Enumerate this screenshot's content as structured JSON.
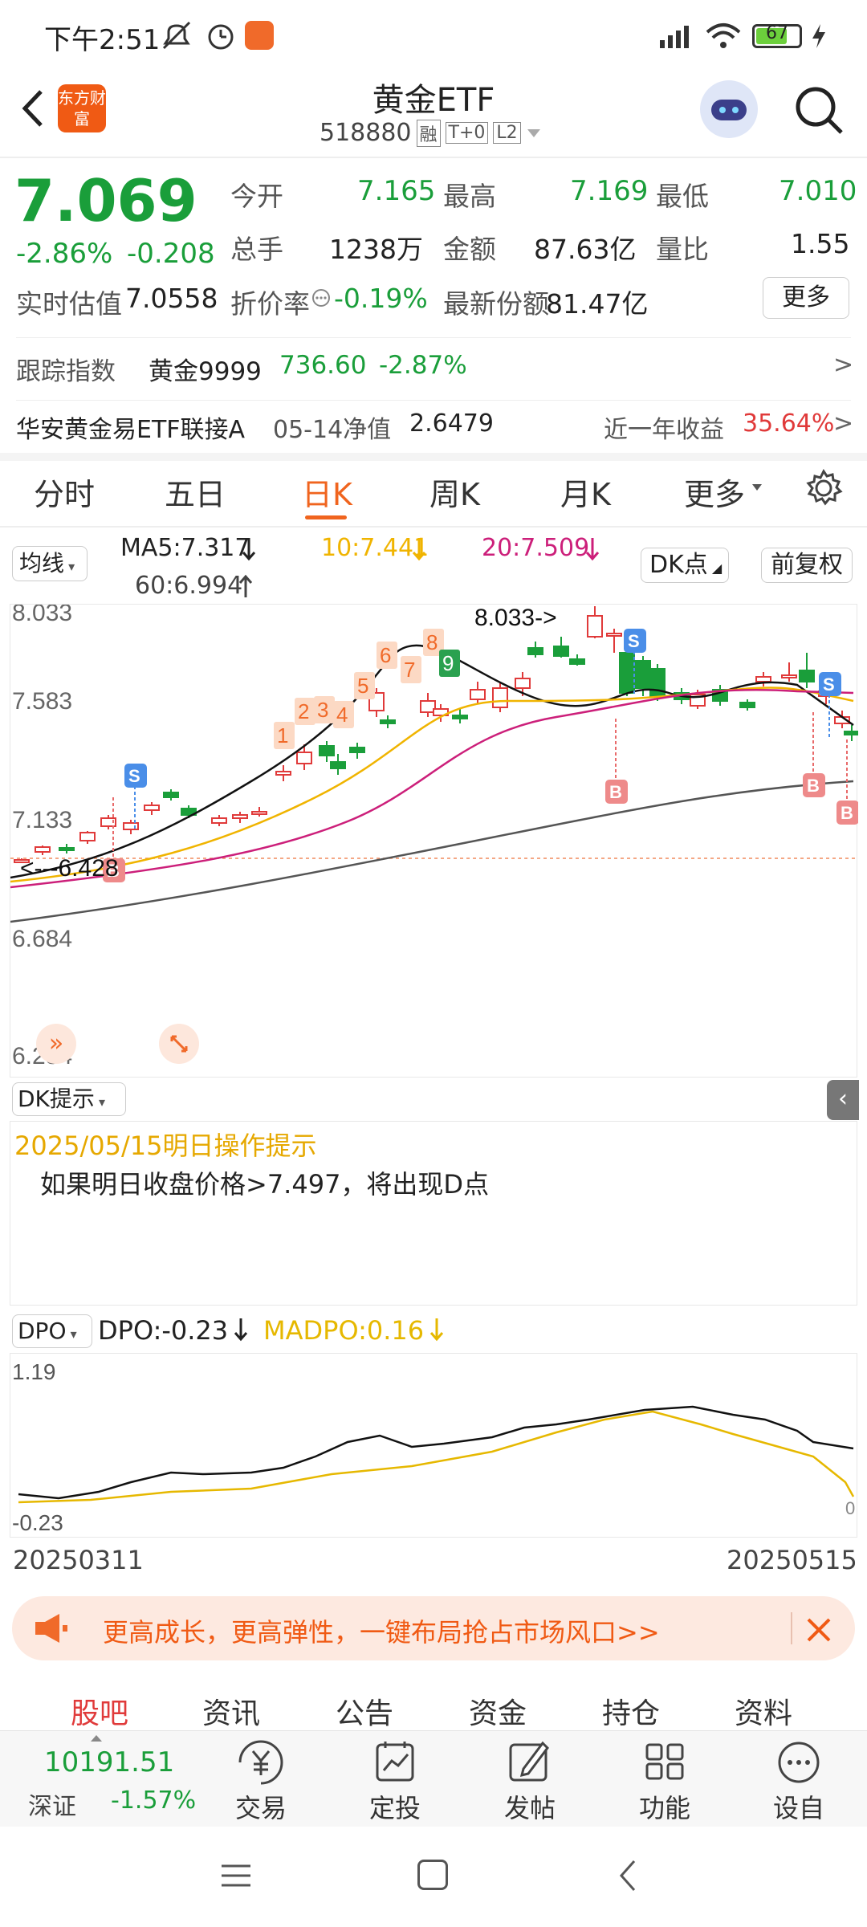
{
  "status_bar": {
    "time": "下午2:51",
    "battery": "67"
  },
  "header": {
    "title": "黄金ETF",
    "code": "518880",
    "badge_rong": "融",
    "badge_t0": "T+0",
    "badge_l2": "L2",
    "logo_text": "东方财富"
  },
  "quote": {
    "price": "7.069",
    "change_pct": "-2.86%",
    "change": "-0.208",
    "open_label": "今开",
    "open": "7.165",
    "high_label": "最高",
    "high": "7.169",
    "low_label": "最低",
    "low": "7.010",
    "volume_label": "总手",
    "volume": "1238万",
    "amount_label": "金额",
    "amount": "87.63亿",
    "ratio_label": "量比",
    "ratio": "1.55",
    "iopv_label": "实时估值",
    "iopv": "7.0558",
    "discount_label": "折价率",
    "discount": "-0.19%",
    "shares_label": "最新份额",
    "shares": "81.47亿",
    "more_label": "更多"
  },
  "tracking": {
    "label": "跟踪指数",
    "index_name": "黄金9999",
    "index_price": "736.60",
    "index_change": "-2.87%",
    "chevron": ">"
  },
  "linked_fund": {
    "name": "华安黄金易ETF联接A",
    "nav_label": "05-14净值",
    "nav": "2.6479",
    "ret_label": "近一年收益",
    "ret": "35.64%",
    "chevron": ">"
  },
  "chart_tabs": [
    "分时",
    "五日",
    "日K",
    "周K",
    "月K",
    "更多"
  ],
  "ma_bar": {
    "selector": "均线",
    "ma5": "MA5:7.317",
    "ma10": "10:7.441",
    "ma20": "20:7.509",
    "ma60": "60:6.994",
    "dk": "DK点",
    "fq": "前复权"
  },
  "chart_data": [
    {
      "type": "candlestick",
      "y_ticks": [
        "8.033",
        "7.583",
        "7.133",
        "6.684",
        "6.234"
      ],
      "ylim": [
        6.234,
        8.033
      ],
      "annotations": {
        "max_label": "8.033->",
        "min_label": "<---6.428",
        "seq": [
          "1",
          "2",
          "3",
          "4",
          "5",
          "6",
          "7",
          "8",
          "9"
        ],
        "buy": "B",
        "sell": "S"
      }
    },
    {
      "type": "line",
      "y_ticks": [
        "1.19",
        "-0.23"
      ],
      "right_tick": "0",
      "x_labels": [
        "20250311",
        "20250515"
      ],
      "series": [
        {
          "name": "DPO"
        },
        {
          "name": "MADPO"
        }
      ]
    }
  ],
  "dk_panel": {
    "selector": "DK提示",
    "date_line": "2025/05/15明日操作提示",
    "tip": "如果明日收盘价格>7.497，将出现D点"
  },
  "dpo_bar": {
    "selector": "DPO",
    "dpo": "DPO:-0.23",
    "madpo": "MADPO:0.16"
  },
  "ad_banner": {
    "text": "更高成长，更高弹性，一键布局抢占市场风口>>"
  },
  "bottom_tabs": [
    "股吧",
    "资讯",
    "公告",
    "资金",
    "持仓",
    "资料"
  ],
  "bottom_nav": {
    "index_value": "10191.51",
    "index_name": "深证",
    "index_change": "-1.57%",
    "items": [
      "交易",
      "定投",
      "发帖",
      "功能",
      "设自选"
    ]
  },
  "colors": {
    "up": "#e03a3a",
    "down": "#1a9e3a",
    "accent": "#f0641e",
    "ma10": "#f0b400",
    "ma20": "#cc1f7a"
  }
}
